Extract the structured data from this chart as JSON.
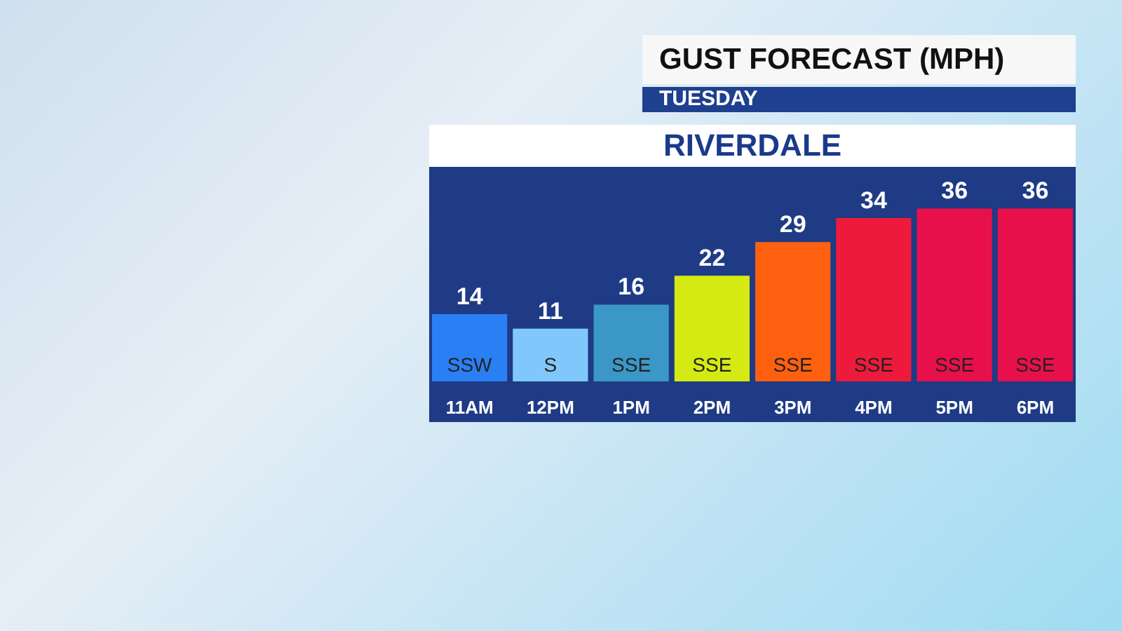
{
  "chart_data": {
    "type": "bar",
    "title": "GUST FORECAST (MPH)",
    "subtitle": "TUESDAY",
    "categories": [
      "11AM",
      "12PM",
      "1PM",
      "2PM",
      "3PM",
      "4PM",
      "5PM",
      "6PM"
    ],
    "values": [
      14,
      11,
      16,
      22,
      29,
      34,
      36,
      36
    ],
    "colors": [
      "#2a7ff5",
      "#80c8fb",
      "#3a97c6",
      "#d4ea12",
      "#fe6010",
      "#ee1a3c",
      "#e8104a",
      "#e8104a"
    ],
    "data_labels": true,
    "annotations": [
      "RIVERDALE",
      "SSW",
      "S",
      "SSE",
      "SSE",
      "SSE",
      "SSE",
      "SSE",
      "SSE"
    ]
  }
}
